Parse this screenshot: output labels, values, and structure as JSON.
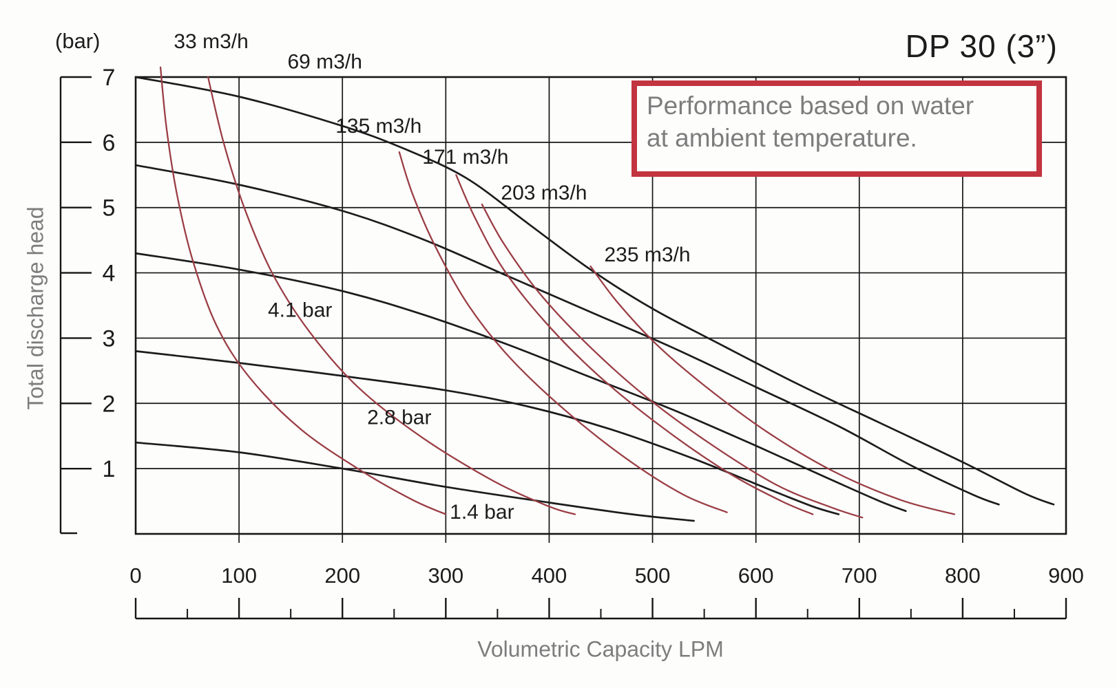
{
  "page": {
    "title": "DP 30 (3”)",
    "note": {
      "line1": "Performance based on water",
      "line2": "at ambient temperature."
    }
  },
  "chart_data": {
    "type": "line",
    "title": "DP 30 (3”)",
    "xlabel": "Volumetric Capacity LPM",
    "ylabel": "Total discharge head",
    "y_unit": "(bar)",
    "xlim": [
      0,
      900
    ],
    "ylim": [
      0,
      7
    ],
    "grid": "on",
    "x_ticks": [
      0,
      100,
      200,
      300,
      400,
      500,
      600,
      700,
      800,
      900
    ],
    "x_minor_ticks": [
      50,
      150,
      250,
      350,
      450,
      550,
      650,
      750,
      850
    ],
    "y_ticks": [
      7,
      6,
      5,
      4,
      3,
      2,
      1
    ],
    "pressure_curves_bar": [
      {
        "name": "pressure-curve-1",
        "label": "",
        "points": [
          [
            0,
            7.0
          ],
          [
            100,
            6.7
          ],
          [
            200,
            6.25
          ],
          [
            260,
            5.9
          ],
          [
            320,
            5.45
          ],
          [
            380,
            4.75
          ],
          [
            440,
            4.05
          ],
          [
            500,
            3.45
          ],
          [
            560,
            2.95
          ],
          [
            640,
            2.3
          ],
          [
            720,
            1.7
          ],
          [
            800,
            1.1
          ],
          [
            860,
            0.62
          ],
          [
            888,
            0.45
          ]
        ]
      },
      {
        "name": "pressure-curve-2",
        "label": "",
        "points": [
          [
            0,
            5.65
          ],
          [
            100,
            5.35
          ],
          [
            200,
            4.95
          ],
          [
            280,
            4.5
          ],
          [
            360,
            3.95
          ],
          [
            440,
            3.4
          ],
          [
            520,
            2.85
          ],
          [
            600,
            2.25
          ],
          [
            680,
            1.65
          ],
          [
            750,
            1.05
          ],
          [
            810,
            0.6
          ],
          [
            835,
            0.45
          ]
        ]
      },
      {
        "name": "pressure-curve-4.1-bar",
        "label": "4.1 bar",
        "points": [
          [
            0,
            4.3
          ],
          [
            100,
            4.05
          ],
          [
            200,
            3.72
          ],
          [
            280,
            3.35
          ],
          [
            360,
            2.9
          ],
          [
            440,
            2.4
          ],
          [
            520,
            1.9
          ],
          [
            600,
            1.35
          ],
          [
            670,
            0.85
          ],
          [
            720,
            0.5
          ],
          [
            745,
            0.35
          ]
        ]
      },
      {
        "name": "pressure-curve-2.8-bar",
        "label": "2.8 bar",
        "points": [
          [
            0,
            2.8
          ],
          [
            100,
            2.62
          ],
          [
            200,
            2.42
          ],
          [
            300,
            2.2
          ],
          [
            380,
            1.95
          ],
          [
            460,
            1.6
          ],
          [
            540,
            1.15
          ],
          [
            610,
            0.7
          ],
          [
            655,
            0.42
          ],
          [
            680,
            0.3
          ]
        ]
      },
      {
        "name": "pressure-curve-1.4-bar",
        "label": "1.4 bar",
        "points": [
          [
            0,
            1.4
          ],
          [
            100,
            1.25
          ],
          [
            200,
            1.0
          ],
          [
            300,
            0.72
          ],
          [
            400,
            0.48
          ],
          [
            480,
            0.3
          ],
          [
            540,
            0.2
          ]
        ]
      }
    ],
    "air_consumption_curves_m3h": [
      {
        "name": "air-curve-33-m3h",
        "label": "33 m3/h",
        "points": [
          [
            24,
            7.15
          ],
          [
            30,
            6.2
          ],
          [
            40,
            5.2
          ],
          [
            55,
            4.2
          ],
          [
            78,
            3.2
          ],
          [
            110,
            2.4
          ],
          [
            160,
            1.6
          ],
          [
            220,
            0.95
          ],
          [
            268,
            0.52
          ],
          [
            300,
            0.3
          ]
        ]
      },
      {
        "name": "air-curve-69-m3h",
        "label": "69 m3/h",
        "points": [
          [
            70,
            7.0
          ],
          [
            85,
            6.0
          ],
          [
            105,
            5.0
          ],
          [
            132,
            4.0
          ],
          [
            168,
            3.1
          ],
          [
            215,
            2.25
          ],
          [
            275,
            1.5
          ],
          [
            345,
            0.82
          ],
          [
            400,
            0.42
          ],
          [
            425,
            0.3
          ]
        ]
      },
      {
        "name": "air-curve-135-m3h",
        "label": "135 m3/h",
        "points": [
          [
            255,
            5.85
          ],
          [
            268,
            5.2
          ],
          [
            290,
            4.4
          ],
          [
            322,
            3.5
          ],
          [
            362,
            2.7
          ],
          [
            415,
            1.9
          ],
          [
            475,
            1.15
          ],
          [
            530,
            0.6
          ],
          [
            572,
            0.33
          ]
        ]
      },
      {
        "name": "air-curve-171-m3h",
        "label": "171 m3/h",
        "points": [
          [
            310,
            5.5
          ],
          [
            328,
            4.85
          ],
          [
            356,
            4.05
          ],
          [
            396,
            3.25
          ],
          [
            446,
            2.45
          ],
          [
            508,
            1.65
          ],
          [
            572,
            0.95
          ],
          [
            625,
            0.5
          ],
          [
            655,
            0.3
          ]
        ]
      },
      {
        "name": "air-curve-203-m3h",
        "label": "203 m3/h",
        "points": [
          [
            335,
            5.05
          ],
          [
            356,
            4.45
          ],
          [
            390,
            3.7
          ],
          [
            434,
            2.95
          ],
          [
            490,
            2.15
          ],
          [
            554,
            1.4
          ],
          [
            620,
            0.75
          ],
          [
            674,
            0.4
          ],
          [
            703,
            0.25
          ]
        ]
      },
      {
        "name": "air-curve-235-m3h",
        "label": "235 m3/h",
        "points": [
          [
            440,
            4.1
          ],
          [
            466,
            3.55
          ],
          [
            504,
            2.9
          ],
          [
            552,
            2.25
          ],
          [
            612,
            1.55
          ],
          [
            676,
            0.95
          ],
          [
            740,
            0.52
          ],
          [
            792,
            0.3
          ]
        ]
      }
    ],
    "annotations": [
      {
        "text": "33 m3/h",
        "lpm": 73,
        "bar": 7.56
      },
      {
        "text": "69 m3/h",
        "lpm": 183,
        "bar": 7.25
      },
      {
        "text": "135 m3/h",
        "lpm": 235,
        "bar": 6.26
      },
      {
        "text": "171 m3/h",
        "lpm": 319,
        "bar": 5.79
      },
      {
        "text": "203 m3/h",
        "lpm": 395,
        "bar": 5.24
      },
      {
        "text": "235 m3/h",
        "lpm": 495,
        "bar": 4.29
      },
      {
        "text": "4.1 bar",
        "lpm": 159,
        "bar": 3.44
      },
      {
        "text": "2.8 bar",
        "lpm": 255,
        "bar": 1.8
      },
      {
        "text": "1.4 bar",
        "lpm": 335,
        "bar": 0.35
      }
    ],
    "colors": {
      "pressure_curve": "#1c1c1c",
      "air_curve": "#9a3e44",
      "grid": "#161616",
      "note_border": "#c2343f",
      "text_black": "#1c1c1c",
      "text_gray": "#7d7d7d"
    }
  }
}
